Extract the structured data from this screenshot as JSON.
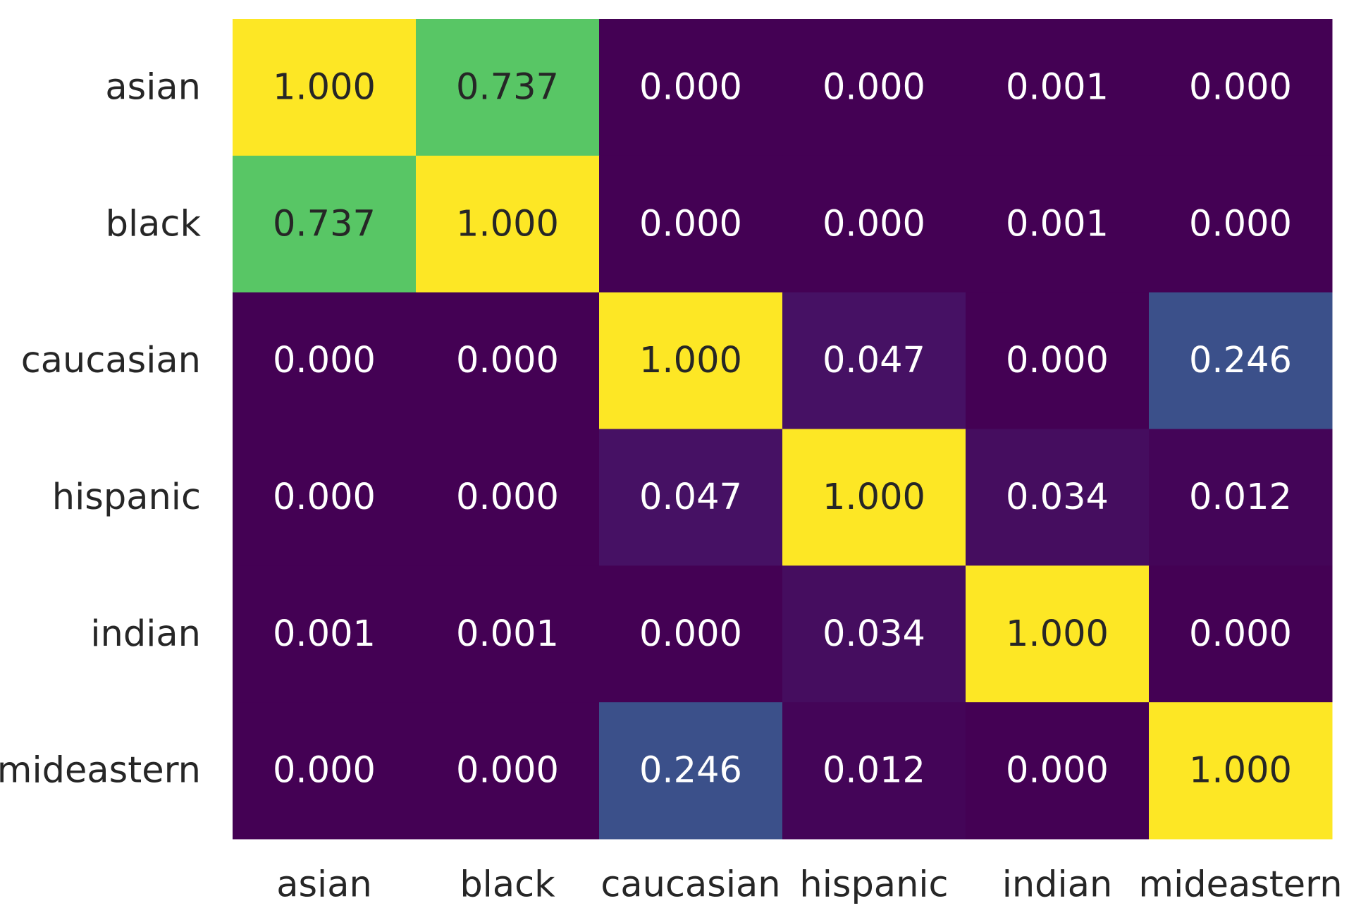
{
  "chart_data": {
    "type": "heatmap",
    "title": "",
    "xlabel": "",
    "ylabel": "",
    "x_categories": [
      "asian",
      "black",
      "caucasian",
      "hispanic",
      "indian",
      "mideastern"
    ],
    "y_categories": [
      "asian",
      "black",
      "caucasian",
      "hispanic",
      "indian",
      "mideastern"
    ],
    "values": [
      [
        1.0,
        0.737,
        0.0,
        0.0,
        0.001,
        0.0
      ],
      [
        0.737,
        1.0,
        0.0,
        0.0,
        0.001,
        0.0
      ],
      [
        0.0,
        0.0,
        1.0,
        0.047,
        0.0,
        0.246
      ],
      [
        0.0,
        0.0,
        0.047,
        1.0,
        0.034,
        0.012
      ],
      [
        0.001,
        0.001,
        0.0,
        0.034,
        1.0,
        0.0
      ],
      [
        0.0,
        0.0,
        0.246,
        0.012,
        0.0,
        1.0
      ]
    ],
    "value_format": "0.000",
    "range": [
      0,
      1
    ],
    "colormap": "viridis",
    "colorbar": false,
    "annotations": true,
    "text_color_dark": "#262626",
    "text_color_light": "#ffffff"
  }
}
